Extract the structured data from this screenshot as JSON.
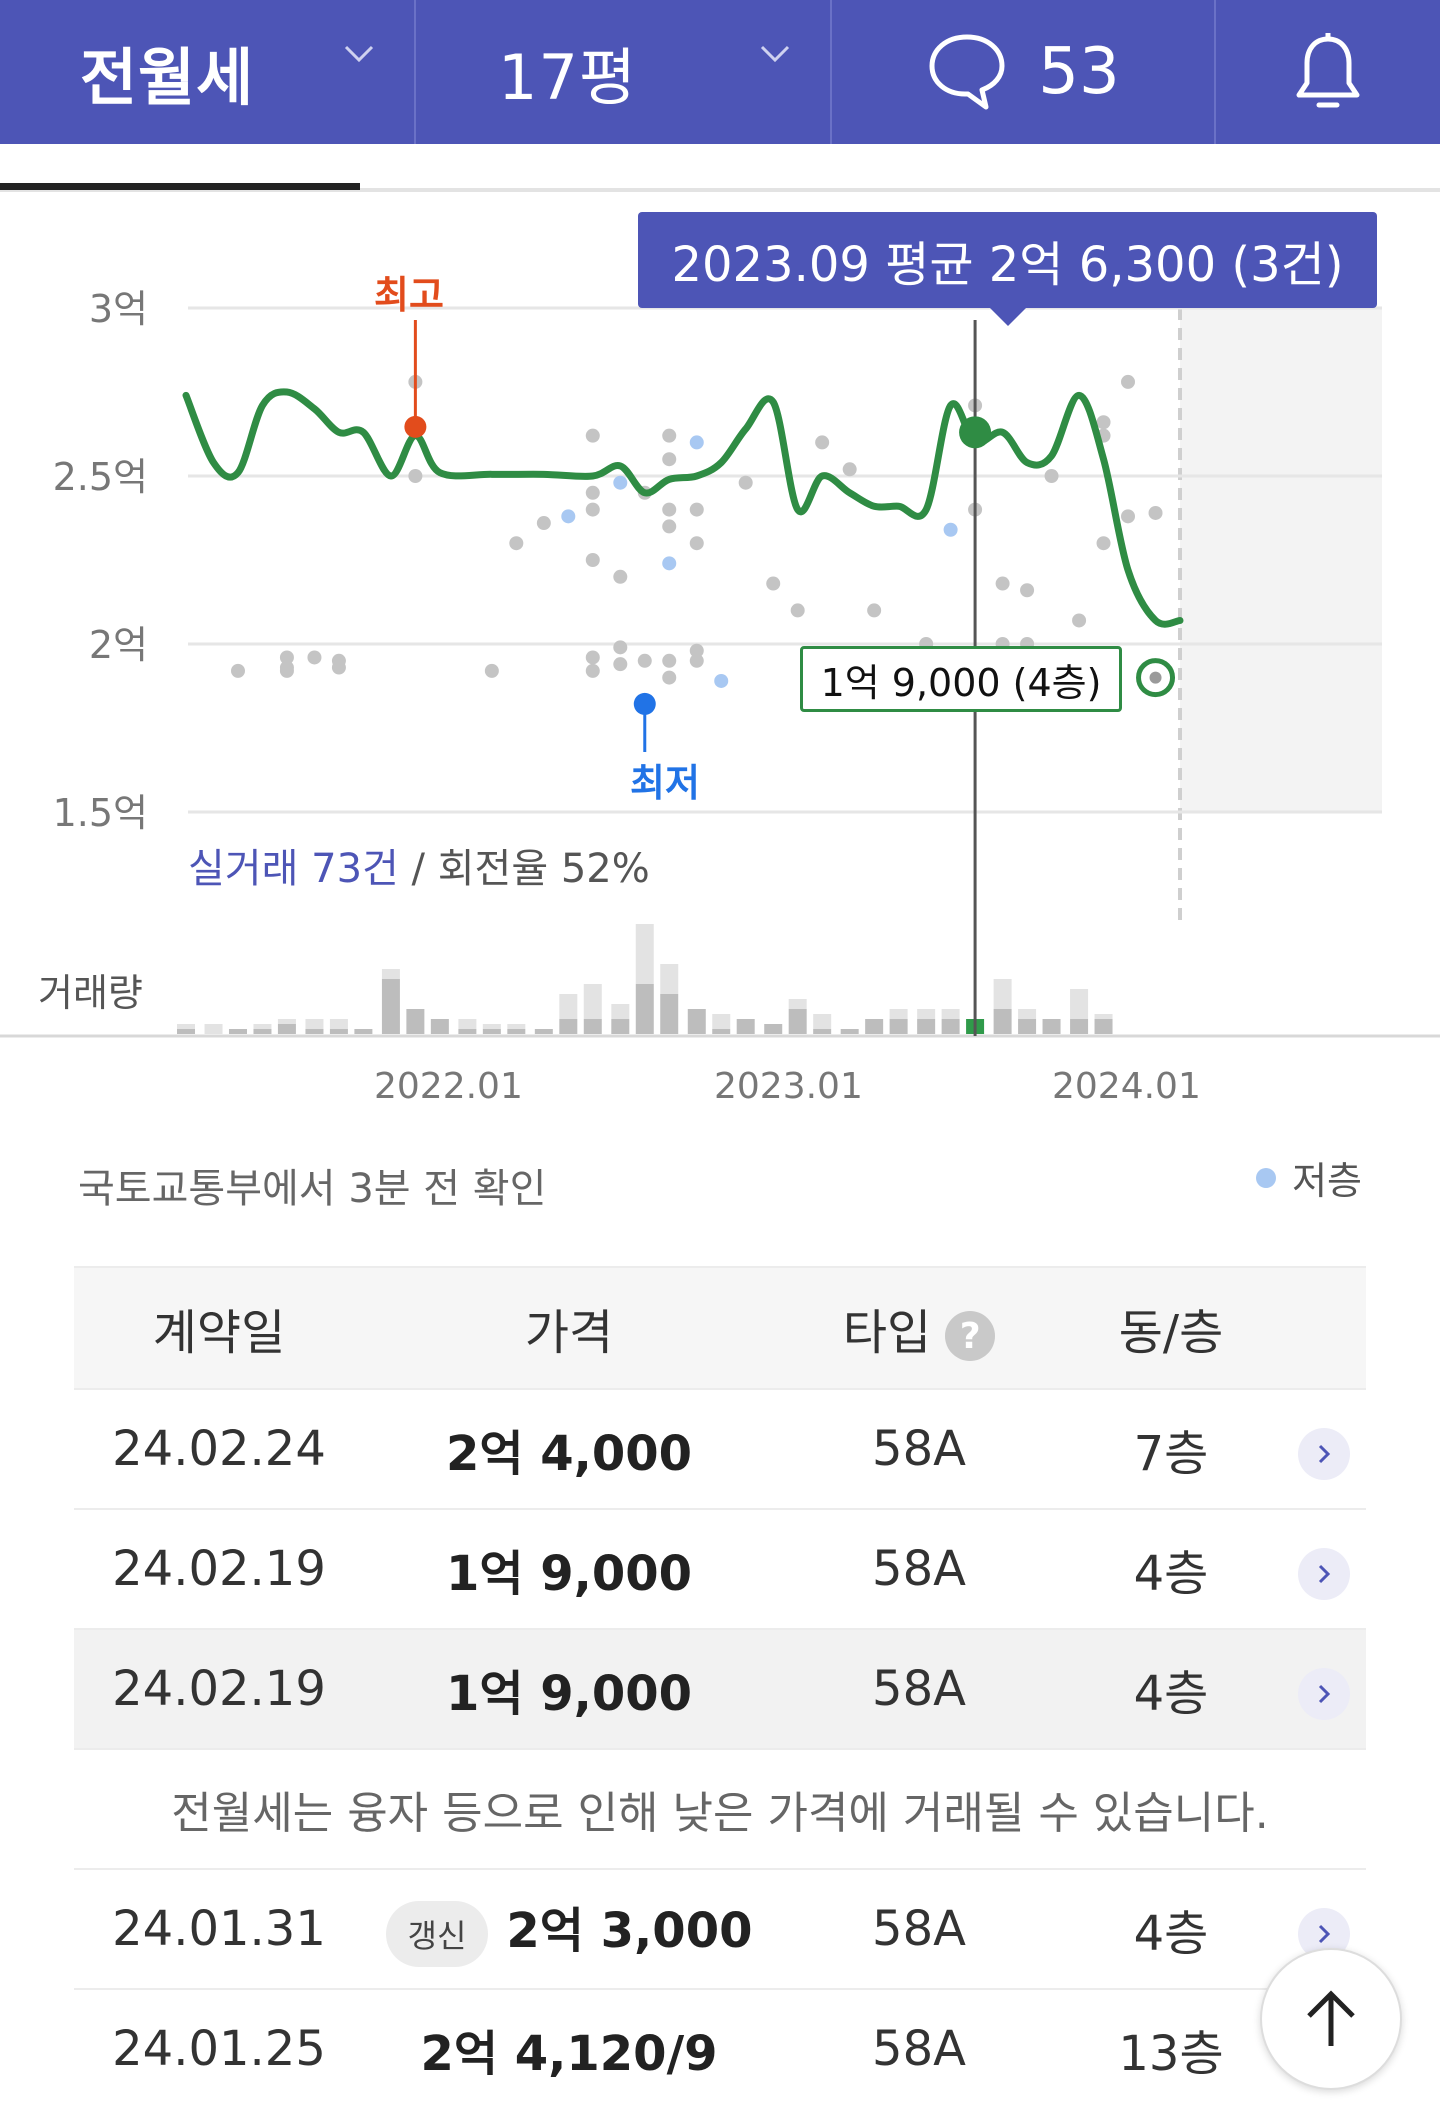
{
  "header": {
    "deal_type": "전월세",
    "size": "17평",
    "comment_count": "53"
  },
  "chart_data": {
    "type": "line",
    "ylabels": [
      "3억",
      "2.5억",
      "2억",
      "1.5억"
    ],
    "ylim": [
      15000,
      30000
    ],
    "xticks": [
      "2022.01",
      "2023.01",
      "2024.01"
    ],
    "tooltip": "2023.09 평균 2억 6,300 (3건)",
    "highest_label": "최고",
    "lowest_label": "최저",
    "selected_point_label": "1억 9,000 (4층)",
    "trade_summary_count": "실거래 73건",
    "trade_summary_rest": " / 회전율 52%",
    "volume_label": "거래량",
    "series": [
      {
        "values": [
          {
            "t": 2021.17,
            "v": 27400
          },
          {
            "t": 2021.26,
            "v": 25400
          },
          {
            "t": 2021.34,
            "v": 25100
          },
          {
            "t": 2021.42,
            "v": 27100
          },
          {
            "t": 2021.5,
            "v": 27500
          },
          {
            "t": 2021.59,
            "v": 27000
          },
          {
            "t": 2021.67,
            "v": 26300
          },
          {
            "t": 2021.75,
            "v": 26300
          },
          {
            "t": 2021.84,
            "v": 25000
          },
          {
            "t": 2021.92,
            "v": 26200
          },
          {
            "t": 2022.0,
            "v": 25100
          },
          {
            "t": 2022.17,
            "v": 25050
          },
          {
            "t": 2022.34,
            "v": 25050
          },
          {
            "t": 2022.5,
            "v": 25000
          },
          {
            "t": 2022.59,
            "v": 25300
          },
          {
            "t": 2022.67,
            "v": 24500
          },
          {
            "t": 2022.75,
            "v": 24900
          },
          {
            "t": 2022.84,
            "v": 25000
          },
          {
            "t": 2022.92,
            "v": 25400
          },
          {
            "t": 2023.0,
            "v": 26400
          },
          {
            "t": 2023.09,
            "v": 27200
          },
          {
            "t": 2023.17,
            "v": 24000
          },
          {
            "t": 2023.25,
            "v": 25000
          },
          {
            "t": 2023.34,
            "v": 24500
          },
          {
            "t": 2023.42,
            "v": 24100
          },
          {
            "t": 2023.5,
            "v": 24100
          },
          {
            "t": 2023.59,
            "v": 24000
          },
          {
            "t": 2023.67,
            "v": 27100
          },
          {
            "t": 2023.75,
            "v": 26000
          },
          {
            "t": 2023.84,
            "v": 26300
          },
          {
            "t": 2023.92,
            "v": 25400
          },
          {
            "t": 2024.0,
            "v": 25600
          },
          {
            "t": 2024.09,
            "v": 27400
          },
          {
            "t": 2024.17,
            "v": 25500
          },
          {
            "t": 2024.25,
            "v": 22200
          },
          {
            "t": 2024.34,
            "v": 20700
          },
          {
            "t": 2024.42,
            "v": 20700
          }
        ]
      }
    ],
    "highest": {
      "t": 2021.92,
      "v": 26700
    },
    "lowest": {
      "t": 2022.67,
      "v": 17800
    },
    "selected": {
      "t": 2023.75,
      "v": 26300
    },
    "last_point": {
      "t": 2024.34,
      "v": 19000
    },
    "dots": [
      {
        "t": 2021.34,
        "v": 19200
      },
      {
        "t": 2021.5,
        "v": 19600
      },
      {
        "t": 2021.5,
        "v": 19300
      },
      {
        "t": 2021.5,
        "v": 19200
      },
      {
        "t": 2021.59,
        "v": 19600
      },
      {
        "t": 2021.67,
        "v": 19500
      },
      {
        "t": 2021.67,
        "v": 19300
      },
      {
        "t": 2021.92,
        "v": 27800
      },
      {
        "t": 2021.92,
        "v": 25000
      },
      {
        "t": 2022.17,
        "v": 19200
      },
      {
        "t": 2022.25,
        "v": 23000
      },
      {
        "t": 2022.34,
        "v": 23600
      },
      {
        "t": 2022.42,
        "v": 23800,
        "low": true
      },
      {
        "t": 2022.5,
        "v": 26200
      },
      {
        "t": 2022.5,
        "v": 24500
      },
      {
        "t": 2022.5,
        "v": 24000
      },
      {
        "t": 2022.5,
        "v": 22500
      },
      {
        "t": 2022.5,
        "v": 19600
      },
      {
        "t": 2022.5,
        "v": 19200
      },
      {
        "t": 2022.59,
        "v": 24800,
        "low": true
      },
      {
        "t": 2022.59,
        "v": 22000
      },
      {
        "t": 2022.59,
        "v": 19900
      },
      {
        "t": 2022.59,
        "v": 19400
      },
      {
        "t": 2022.67,
        "v": 24500
      },
      {
        "t": 2022.67,
        "v": 19500
      },
      {
        "t": 2022.75,
        "v": 26200
      },
      {
        "t": 2022.75,
        "v": 25500
      },
      {
        "t": 2022.75,
        "v": 24000
      },
      {
        "t": 2022.75,
        "v": 23500
      },
      {
        "t": 2022.75,
        "v": 22400,
        "low": true
      },
      {
        "t": 2022.75,
        "v": 19500
      },
      {
        "t": 2022.75,
        "v": 19000
      },
      {
        "t": 2022.84,
        "v": 26000,
        "low": true
      },
      {
        "t": 2022.84,
        "v": 24000
      },
      {
        "t": 2022.84,
        "v": 23000
      },
      {
        "t": 2022.84,
        "v": 19800
      },
      {
        "t": 2022.84,
        "v": 19500
      },
      {
        "t": 2022.92,
        "v": 18900,
        "low": true
      },
      {
        "t": 2023.0,
        "v": 24800
      },
      {
        "t": 2023.09,
        "v": 21800
      },
      {
        "t": 2023.17,
        "v": 21000
      },
      {
        "t": 2023.25,
        "v": 26000
      },
      {
        "t": 2023.34,
        "v": 25200
      },
      {
        "t": 2023.42,
        "v": 21000
      },
      {
        "t": 2023.59,
        "v": 20000
      },
      {
        "t": 2023.67,
        "v": 23400,
        "low": true
      },
      {
        "t": 2023.75,
        "v": 27100
      },
      {
        "t": 2023.75,
        "v": 24000
      },
      {
        "t": 2023.84,
        "v": 21800
      },
      {
        "t": 2023.84,
        "v": 20000
      },
      {
        "t": 2023.92,
        "v": 21600
      },
      {
        "t": 2023.92,
        "v": 20000
      },
      {
        "t": 2024.0,
        "v": 25000
      },
      {
        "t": 2024.09,
        "v": 20700
      },
      {
        "t": 2024.17,
        "v": 26600
      },
      {
        "t": 2024.17,
        "v": 26200
      },
      {
        "t": 2024.17,
        "v": 23000
      },
      {
        "t": 2024.25,
        "v": 27800
      },
      {
        "t": 2024.25,
        "v": 23800
      },
      {
        "t": 2024.34,
        "v": 23900
      }
    ],
    "volume": [
      {
        "t": 2021.17,
        "n": 1,
        "f": 2
      },
      {
        "t": 2021.26,
        "n": 0,
        "f": 2
      },
      {
        "t": 2021.34,
        "n": 1,
        "f": 1
      },
      {
        "t": 2021.42,
        "n": 1,
        "f": 2
      },
      {
        "t": 2021.5,
        "n": 2,
        "f": 3
      },
      {
        "t": 2021.59,
        "n": 1,
        "f": 3
      },
      {
        "t": 2021.67,
        "n": 1,
        "f": 3
      },
      {
        "t": 2021.75,
        "n": 1,
        "f": 1
      },
      {
        "t": 2021.84,
        "n": 11,
        "f": 13
      },
      {
        "t": 2021.92,
        "n": 5,
        "f": 5
      },
      {
        "t": 2022.0,
        "n": 3,
        "f": 3
      },
      {
        "t": 2022.09,
        "n": 1,
        "f": 3
      },
      {
        "t": 2022.17,
        "n": 1,
        "f": 2
      },
      {
        "t": 2022.25,
        "n": 1,
        "f": 2
      },
      {
        "t": 2022.34,
        "n": 1,
        "f": 1
      },
      {
        "t": 2022.42,
        "n": 3,
        "f": 8
      },
      {
        "t": 2022.5,
        "n": 3,
        "f": 10
      },
      {
        "t": 2022.59,
        "n": 3,
        "f": 6
      },
      {
        "t": 2022.67,
        "n": 10,
        "f": 22
      },
      {
        "t": 2022.75,
        "n": 8,
        "f": 14
      },
      {
        "t": 2022.84,
        "n": 5,
        "f": 5
      },
      {
        "t": 2022.92,
        "n": 1,
        "f": 4
      },
      {
        "t": 2023.0,
        "n": 3,
        "f": 3
      },
      {
        "t": 2023.09,
        "n": 2,
        "f": 2
      },
      {
        "t": 2023.17,
        "n": 5,
        "f": 7
      },
      {
        "t": 2023.25,
        "n": 1,
        "f": 4
      },
      {
        "t": 2023.34,
        "n": 1,
        "f": 1
      },
      {
        "t": 2023.42,
        "n": 3,
        "f": 3
      },
      {
        "t": 2023.5,
        "n": 3,
        "f": 5
      },
      {
        "t": 2023.59,
        "n": 3,
        "f": 5
      },
      {
        "t": 2023.67,
        "n": 3,
        "f": 5
      },
      {
        "t": 2023.75,
        "n": 3,
        "f": 3,
        "sel": true
      },
      {
        "t": 2023.84,
        "n": 5,
        "f": 11
      },
      {
        "t": 2023.92,
        "n": 3,
        "f": 5
      },
      {
        "t": 2024.0,
        "n": 3,
        "f": 3
      },
      {
        "t": 2024.09,
        "n": 3,
        "f": 9
      },
      {
        "t": 2024.17,
        "n": 3,
        "f": 4
      }
    ]
  },
  "source_text": "국토교통부에서 3분 전 확인",
  "legend_low": "저층",
  "table": {
    "headers": {
      "date": "계약일",
      "price": "가격",
      "type": "타입",
      "floor": "동/층"
    },
    "help_mark": "?",
    "notice": "전월세는 융자 등으로 인해 낮은 가격에 거래될 수 있습니다.",
    "renew_badge": "갱신",
    "rows": [
      {
        "date": "24.02.24",
        "price": "2억 4,000",
        "type": "58A",
        "floor": "7층"
      },
      {
        "date": "24.02.19",
        "price": "1억 9,000",
        "type": "58A",
        "floor": "4층"
      },
      {
        "date": "24.02.19",
        "price": "1억 9,000",
        "type": "58A",
        "floor": "4층"
      },
      {
        "date": "24.01.31",
        "price": "2억 3,000",
        "type": "58A",
        "floor": "4층"
      },
      {
        "date": "24.01.25",
        "price": "2억 4,120/9",
        "type": "58A",
        "floor": "13층"
      }
    ]
  }
}
